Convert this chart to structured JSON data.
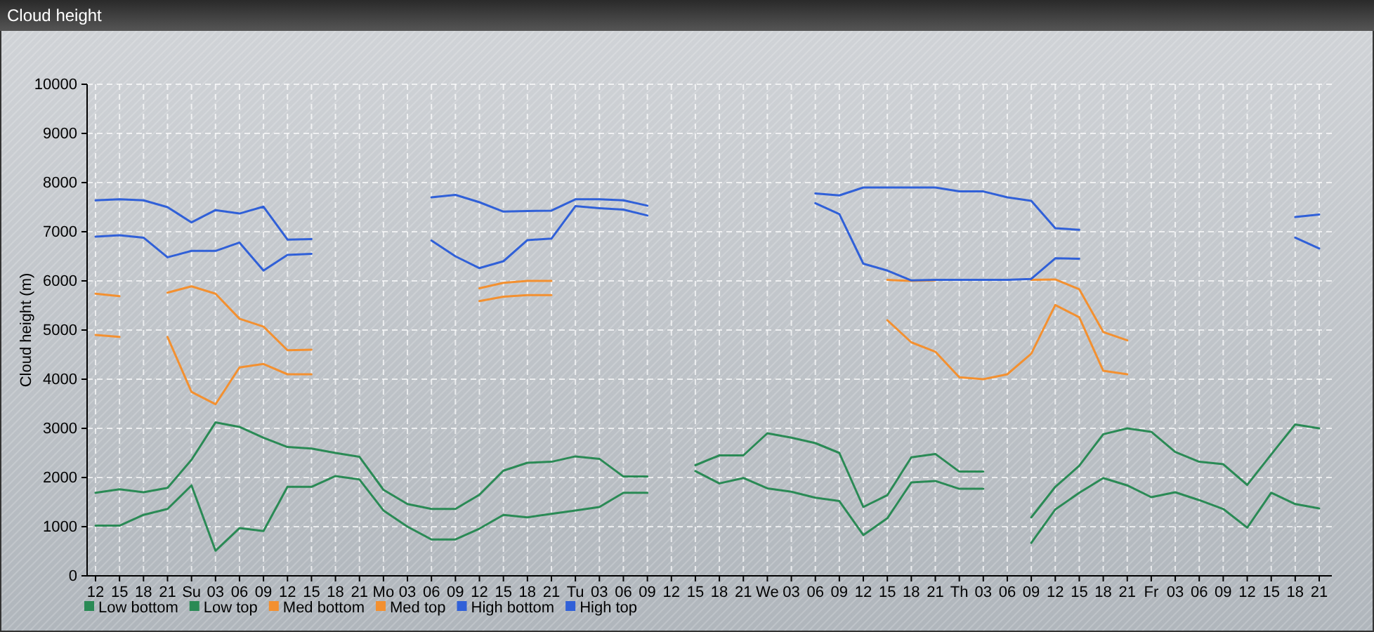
{
  "chart_data": {
    "type": "line",
    "title": "Cloud height",
    "ylabel": "Cloud height (m)",
    "categories": [
      "12",
      "15",
      "18",
      "21",
      "Su",
      "03",
      "06",
      "09",
      "12",
      "15",
      "18",
      "21",
      "Mo",
      "03",
      "06",
      "09",
      "12",
      "15",
      "18",
      "21",
      "Tu",
      "03",
      "06",
      "09",
      "12",
      "15",
      "18",
      "21",
      "We",
      "03",
      "06",
      "09",
      "12",
      "15",
      "18",
      "21",
      "Th",
      "03",
      "06",
      "09",
      "12",
      "15",
      "18",
      "21",
      "Fr",
      "03",
      "06",
      "09",
      "12",
      "15",
      "18",
      "21"
    ],
    "ylim": [
      0,
      10000
    ],
    "yticks": [
      0,
      1000,
      2000,
      3000,
      4000,
      5000,
      6000,
      7000,
      8000,
      9000,
      10000
    ],
    "grid": true,
    "legend": "bottom left",
    "series": [
      {
        "name": "Low bottom",
        "color": "#2a8a55",
        "values": [
          1020,
          1020,
          1240,
          1360,
          1840,
          510,
          970,
          910,
          1810,
          1810,
          2030,
          1960,
          1330,
          1000,
          740,
          740,
          960,
          1240,
          1190,
          1260,
          1330,
          1400,
          1690,
          1690,
          null,
          2130,
          1880,
          1990,
          1780,
          1710,
          1590,
          1520,
          830,
          1170,
          1900,
          1930,
          1770,
          1770,
          null,
          670,
          1350,
          1690,
          1990,
          1840,
          1600,
          1700,
          1540,
          1360,
          980,
          1690,
          1460,
          1370
        ]
      },
      {
        "name": "Low top",
        "color": "#2a8a55",
        "values": [
          1690,
          1760,
          1700,
          1790,
          2360,
          3120,
          3030,
          2810,
          2620,
          2590,
          2500,
          2420,
          1750,
          1460,
          1360,
          1360,
          1650,
          2140,
          2300,
          2320,
          2430,
          2380,
          2020,
          2020,
          null,
          2250,
          2450,
          2450,
          2900,
          2810,
          2700,
          2500,
          1400,
          1640,
          2410,
          2480,
          2120,
          2120,
          null,
          1190,
          1810,
          2240,
          2880,
          3000,
          2930,
          2520,
          2320,
          2270,
          1850,
          2470,
          3080,
          3000
        ]
      },
      {
        "name": "Med bottom",
        "color": "#f39030",
        "values": [
          4900,
          4860,
          null,
          4860,
          3740,
          3490,
          4240,
          4310,
          4100,
          4100,
          null,
          null,
          null,
          null,
          null,
          null,
          5590,
          5680,
          5710,
          5710,
          null,
          null,
          null,
          null,
          null,
          null,
          null,
          null,
          null,
          null,
          null,
          null,
          null,
          5200,
          4750,
          4560,
          4040,
          4000,
          4100,
          4520,
          5510,
          5260,
          4170,
          4100,
          null,
          null,
          null,
          null,
          null,
          null,
          null,
          null
        ]
      },
      {
        "name": "Med top",
        "color": "#f39030",
        "values": [
          5740,
          5690,
          null,
          5760,
          5890,
          5740,
          5230,
          5070,
          4590,
          4600,
          null,
          null,
          null,
          null,
          null,
          null,
          5850,
          5960,
          6000,
          6000,
          null,
          null,
          null,
          null,
          null,
          null,
          null,
          null,
          null,
          null,
          null,
          null,
          null,
          6020,
          6000,
          6010,
          null,
          null,
          null,
          6020,
          6030,
          5830,
          4960,
          4790,
          null,
          null,
          null,
          null,
          null,
          null,
          null,
          null
        ]
      },
      {
        "name": "High bottom",
        "color": "#3060d8",
        "values": [
          6900,
          6930,
          6880,
          6480,
          6610,
          6610,
          6780,
          6210,
          6530,
          6550,
          null,
          null,
          null,
          null,
          6820,
          6500,
          6260,
          6400,
          6830,
          6860,
          7520,
          7480,
          7450,
          7330,
          null,
          null,
          null,
          null,
          null,
          null,
          7580,
          7360,
          6350,
          6210,
          6010,
          6020,
          6020,
          6020,
          6020,
          6040,
          6460,
          6450,
          null,
          null,
          null,
          null,
          null,
          null,
          null,
          null,
          6880,
          6660
        ]
      },
      {
        "name": "High top",
        "color": "#3060d8",
        "values": [
          7640,
          7660,
          7640,
          7500,
          7190,
          7440,
          7370,
          7510,
          6840,
          6850,
          null,
          null,
          null,
          null,
          7700,
          7750,
          7600,
          7410,
          7420,
          7430,
          7660,
          7660,
          7640,
          7530,
          null,
          null,
          null,
          null,
          null,
          null,
          7780,
          7740,
          7900,
          7900,
          7900,
          7900,
          7820,
          7820,
          7700,
          7630,
          7070,
          7040,
          null,
          null,
          null,
          null,
          null,
          null,
          null,
          null,
          7300,
          7350
        ]
      }
    ]
  }
}
